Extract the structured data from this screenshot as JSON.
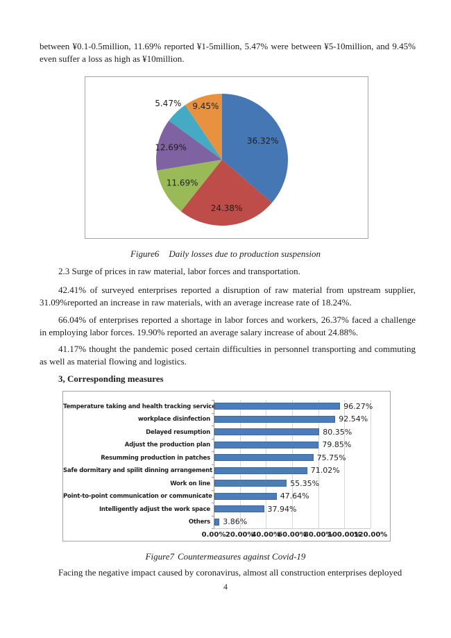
{
  "document": {
    "paragraph_losses": "between ¥0.1-0.5million, 11.69% reported ¥1-5million, 5.47% were between ¥5-10million, and 9.45% even suffer a loss as high as ¥10million.",
    "figure6_label": "Figure6",
    "figure6_caption": "Daily losses due to production suspension",
    "section_2_3": "2.3 Surge of prices in raw material, labor forces and transportation.",
    "paragraph_raw_material": "42.41% of surveyed enterprises reported a disruption of raw material from upstream supplier, 31.09%reported an increase in raw materials, with an average increase rate of 18.24%.",
    "paragraph_labor": "66.04% of enterprises reported a shortage in labor forces and workers, 26.37% faced a challenge in employing labor forces. 19.90% reported an average salary increase of about 24.88%.",
    "paragraph_transport": "41.17% thought the pandemic posed certain difficulties in personnel transporting and commuting as well as material flowing and logistics.",
    "heading_measures": "3, Corresponding measures",
    "figure7_label": "Figure7",
    "figure7_caption": "Countermeasures against Covid-19",
    "paragraph_closing": "Facing the negative impact caused by coronavirus, almost all construction enterprises deployed",
    "page_number": "4"
  },
  "chart_data": [
    {
      "type": "pie",
      "title": "Figure6 Daily losses due to production suspension",
      "labels": [
        "36.32%",
        "24.38%",
        "11.69%",
        "12.69%",
        "5.47%",
        "9.45%"
      ],
      "values": [
        36.32,
        24.38,
        11.69,
        12.69,
        5.47,
        9.45
      ],
      "colors": [
        "#4477B3",
        "#BE4C48",
        "#9ABA58",
        "#7E62A1",
        "#45AAC4",
        "#E8923F"
      ],
      "start_angle_deg": 0,
      "direction": "clockwise",
      "legend": "none",
      "label_color": "#1f1f1f"
    },
    {
      "type": "bar",
      "orientation": "horizontal",
      "title": "Figure7 Countermeasures against Covid-19",
      "categories": [
        "Temperature taking and health tracking service",
        "workplace disinfection",
        "Delayed resumption",
        "Adjust the production plan",
        "Resumming production in patches",
        "Safe dormitary and spilit dinning arrangement",
        "Work on line",
        "Point-to-point communication or communicate on..",
        "Intelligently adjust the work space",
        "Others"
      ],
      "values": [
        96.27,
        92.54,
        80.35,
        79.85,
        75.75,
        71.02,
        55.35,
        47.64,
        37.94,
        3.86
      ],
      "value_labels": [
        "96.27%",
        "92.54%",
        "80.35%",
        "79.85%",
        "75.75%",
        "71.02%",
        "55.35%",
        "47.64%",
        "37.94%",
        "3.86%"
      ],
      "x_ticks": [
        "0.00%",
        "20.00%",
        "40.00%",
        "60.00%",
        "80.00%",
        "100.00%",
        "120.00%"
      ],
      "xlim": [
        0,
        120
      ],
      "grid": true,
      "legend": "none",
      "bar_color": "#4C7DBB",
      "bar_border_color": "#3E689C"
    }
  ]
}
